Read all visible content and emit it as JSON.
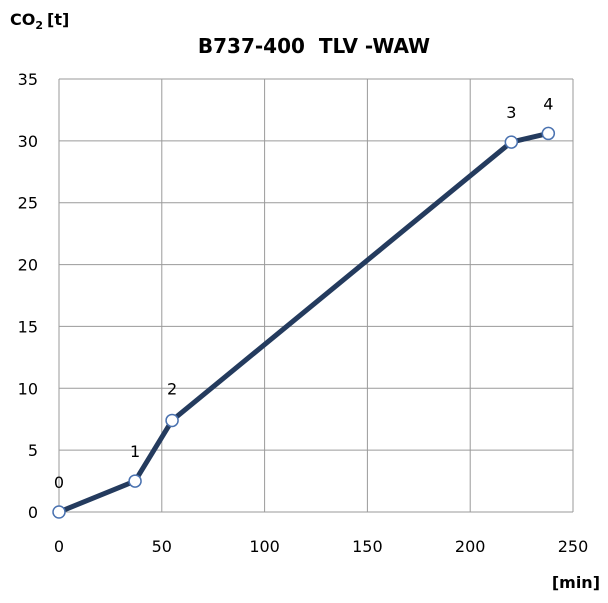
{
  "chart_data": {
    "type": "line",
    "title": "B737-400  TLV -WAW",
    "ylabel": "CO",
    "ylabel_sub": "2",
    "ylabel_unit": "[t]",
    "xlabel": "[min]",
    "xlim": [
      0,
      250
    ],
    "ylim": [
      0,
      35
    ],
    "xticks": [
      "0",
      "50",
      "100",
      "150",
      "200",
      "250"
    ],
    "yticks": [
      "0",
      "5",
      "10",
      "15",
      "20",
      "25",
      "30",
      "35"
    ],
    "grid": true,
    "series": [
      {
        "color": "#243b5e",
        "marker_color": "#4a72b0",
        "points": [
          {
            "x": 0,
            "y": 0,
            "label": "0"
          },
          {
            "x": 37,
            "y": 2.5,
            "label": "1"
          },
          {
            "x": 55,
            "y": 7.4,
            "label": "2"
          },
          {
            "x": 220,
            "y": 29.9,
            "label": "3"
          },
          {
            "x": 238,
            "y": 30.6,
            "label": "4"
          }
        ]
      }
    ]
  }
}
